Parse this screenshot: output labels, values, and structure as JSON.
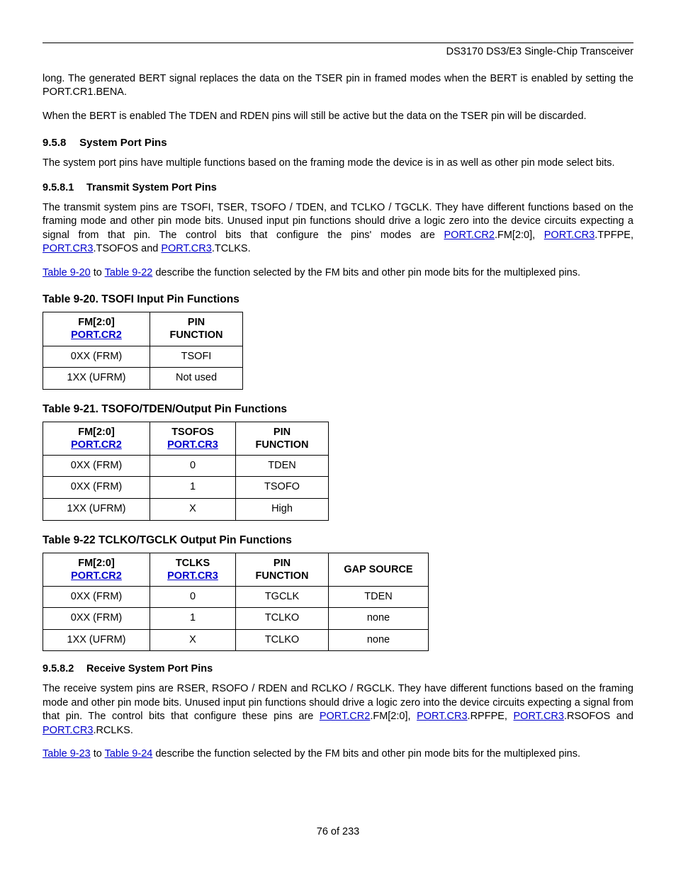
{
  "header": {
    "title": "DS3170 DS3/E3 Single-Chip Transceiver"
  },
  "intro": {
    "p1": "long. The generated BERT signal replaces the data on the TSER pin in framed modes when the BERT is enabled by setting the PORT.CR1.BENA.",
    "p2": "When the BERT is enabled The TDEN and RDEN pins will still be active but the data on the TSER pin will be discarded."
  },
  "sec958": {
    "num": "9.5.8",
    "title": "System Port Pins",
    "p1": "The system port pins have multiple functions based on the framing mode the device is in as well as other pin mode select bits."
  },
  "sec9581": {
    "num": "9.5.8.1",
    "title": "Transmit System Port Pins",
    "p1a": "The transmit system pins are TSOFI, TSER, TSOFO / TDEN, and TCLKO / TGCLK. They have different functions based on the framing mode and other pin mode bits. Unused input pin functions should drive a logic zero into the device circuits expecting a signal from that pin. The control bits that configure the pins' modes are ",
    "link_pcr2_a": "PORT.CR2",
    "p1b": ".FM[2:0], ",
    "link_pcr3_a": "PORT.CR3",
    "p1c": ".TPFPE, ",
    "link_pcr3_b": "PORT.CR3",
    "p1d": ".TSOFOS and ",
    "link_pcr3_c": "PORT.CR3",
    "p1e": ".TCLKS.",
    "p2a": "",
    "link_t920": "Table 9-20",
    "p2b": " to ",
    "link_t922": "Table 9-22",
    "p2c": " describe the function selected by the FM bits and other pin mode bits for the multiplexed pins."
  },
  "table920": {
    "title": "Table 9-20. TSOFI Input Pin Functions",
    "h1a": "FM[2:0]",
    "h1b": "PORT.CR2",
    "h2a": "PIN",
    "h2b": "FUNCTION",
    "r1c1": "0XX (FRM)",
    "r1c2": "TSOFI",
    "r2c1": "1XX (UFRM)",
    "r2c2": "Not used"
  },
  "table921": {
    "title": "Table 9-21. TSOFO/TDEN/Output Pin Functions",
    "h1a": "FM[2:0]",
    "h1b": "PORT.CR2",
    "h2a": "TSOFOS",
    "h2b": "PORT.CR3",
    "h3a": "PIN",
    "h3b": "FUNCTION",
    "r1c1": "0XX (FRM)",
    "r1c2": "0",
    "r1c3": "TDEN",
    "r2c1": "0XX (FRM)",
    "r2c2": "1",
    "r2c3": "TSOFO",
    "r3c1": "1XX (UFRM)",
    "r3c2": "X",
    "r3c3": "High"
  },
  "table922": {
    "title": "Table 9-22 TCLKO/TGCLK Output Pin Functions",
    "h1a": "FM[2:0]",
    "h1b": "PORT.CR2",
    "h2a": "TCLKS",
    "h2b": "PORT.CR3",
    "h3a": "PIN",
    "h3b": "FUNCTION",
    "h4": "GAP SOURCE",
    "r1c1": "0XX (FRM)",
    "r1c2": "0",
    "r1c3": "TGCLK",
    "r1c4": "TDEN",
    "r2c1": "0XX (FRM)",
    "r2c2": "1",
    "r2c3": "TCLKO",
    "r2c4": "none",
    "r3c1": "1XX (UFRM)",
    "r3c2": "X",
    "r3c3": "TCLKO",
    "r3c4": "none"
  },
  "sec9582": {
    "num": "9.5.8.2",
    "title": "Receive System Port Pins",
    "p1a": "The receive system pins are RSER, RSOFO / RDEN and RCLKO / RGCLK. They have different functions based on the framing mode and other pin mode bits. Unused input pin functions should drive a logic zero into the device circuits expecting a signal from that pin. The control bits that configure these pins are ",
    "link_pcr2": "PORT.CR2",
    "p1b": ".FM[2:0], ",
    "link_pcr3_a": "PORT.CR3",
    "p1c": ".RPFPE, ",
    "link_pcr3_b": "PORT.CR3",
    "p1d": ".RSOFOS and ",
    "link_pcr3_c": "PORT.CR3",
    "p1e": ".RCLKS.",
    "p2a": "",
    "link_t923": "Table 9-23",
    "p2b": " to ",
    "link_t924": "Table 9-24",
    "p2c": " describe the function selected by the FM bits and other pin mode bits for the multiplexed pins."
  },
  "footer": {
    "text": "76 of 233"
  }
}
